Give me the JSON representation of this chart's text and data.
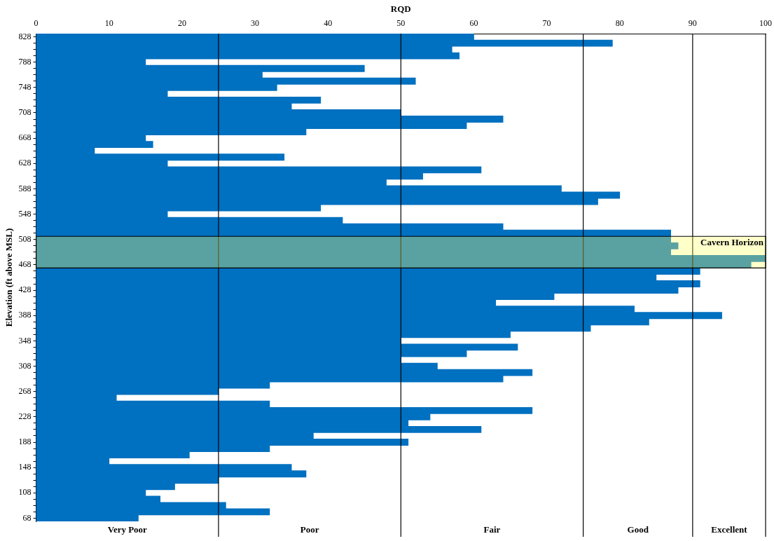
{
  "chart_data": {
    "type": "bar",
    "orientation": "horizontal",
    "xlabel": "RQD",
    "ylabel": "Elevation (ft above MSL)",
    "categories": [
      "828",
      null,
      null,
      null,
      "788",
      null,
      null,
      null,
      "748",
      null,
      null,
      null,
      "708",
      null,
      null,
      null,
      "668",
      null,
      null,
      null,
      "628",
      null,
      null,
      null,
      "588",
      null,
      null,
      null,
      "548",
      null,
      null,
      null,
      "508",
      null,
      null,
      null,
      "468",
      null,
      null,
      null,
      "428",
      null,
      null,
      null,
      "388",
      null,
      null,
      null,
      "348",
      null,
      null,
      null,
      "308",
      null,
      null,
      null,
      "268",
      null,
      null,
      null,
      "228",
      null,
      null,
      null,
      "188",
      null,
      null,
      null,
      "148",
      null,
      null,
      null,
      "108",
      null,
      null,
      null,
      "68"
    ],
    "values": [
      60,
      79,
      57,
      58,
      15,
      45,
      31,
      52,
      33,
      18,
      39,
      35,
      50,
      64,
      59,
      37,
      15,
      16,
      8,
      34,
      18,
      61,
      53,
      48,
      72,
      80,
      77,
      39,
      18,
      42,
      64,
      87,
      87,
      88,
      87,
      100,
      98,
      91,
      85,
      91,
      88,
      71,
      63,
      82,
      94,
      84,
      76,
      65,
      50,
      66,
      59,
      50,
      55,
      68,
      64,
      32,
      25,
      11,
      32,
      68,
      54,
      51,
      61,
      38,
      51,
      32,
      21,
      10,
      35,
      37,
      25,
      19,
      15,
      17,
      26,
      32,
      14
    ],
    "color": "#0070c0",
    "xlim": [
      0,
      100
    ],
    "xticks": [
      0,
      10,
      20,
      30,
      40,
      50,
      60,
      70,
      80,
      90,
      100
    ],
    "bands": [
      {
        "axis": "y",
        "from": "508",
        "to": "468",
        "label": "Cavern Horizon",
        "color": "#ffff66"
      }
    ],
    "ref_lines": [
      {
        "axis": "x",
        "value": 25
      },
      {
        "axis": "x",
        "value": 50
      },
      {
        "axis": "x",
        "value": 75
      },
      {
        "axis": "x",
        "value": 90
      }
    ],
    "annotations": [
      "Very Poor",
      "Poor",
      "Fair",
      "Good",
      "Excellent"
    ],
    "grid": false,
    "legend": false
  }
}
